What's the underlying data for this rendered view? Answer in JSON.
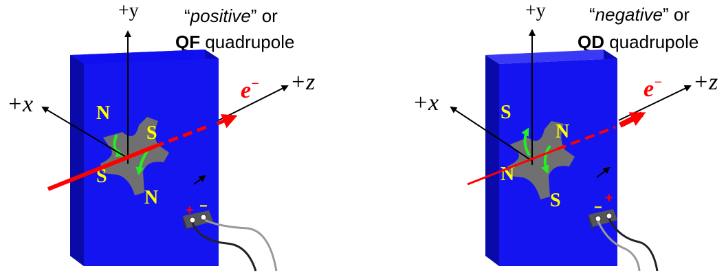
{
  "colors": {
    "magnet_front": "#1010ee",
    "magnet_side": "#0b0bb0",
    "magnet_top": "#3a3af5",
    "pole_piece": "#707070",
    "pole_label": "#ffff00",
    "beam": "#ff0000",
    "field_arrow": "#22ee22",
    "wire_light": "#999999",
    "wire_dark": "#222222"
  },
  "icons": [
    "plus-icon",
    "minus-icon",
    "arrow-icon",
    "connector-icon"
  ],
  "left_panel": {
    "caption": {
      "quote_open": "“",
      "italic_word": "positive",
      "quote_close": "” or",
      "bold_word": "QF",
      "rest": " quadrupole"
    },
    "axes": {
      "x": "+x",
      "y": "+y",
      "z": "+z"
    },
    "electron": {
      "base": "e",
      "superscript": "−"
    },
    "poles": [
      "N",
      "S",
      "S",
      "N"
    ],
    "terminals": {
      "plus": "+",
      "minus": "−"
    }
  },
  "right_panel": {
    "caption": {
      "quote_open": "“",
      "italic_word": "negative",
      "quote_close": "” or",
      "bold_word": "QD",
      "rest": " quadrupole"
    },
    "axes": {
      "x": "+x",
      "y": "+y",
      "z": "+z"
    },
    "electron": {
      "base": "e",
      "superscript": "−"
    },
    "poles": [
      "S",
      "N",
      "N",
      "S"
    ],
    "terminals": {
      "plus": "+",
      "minus": "−"
    }
  }
}
